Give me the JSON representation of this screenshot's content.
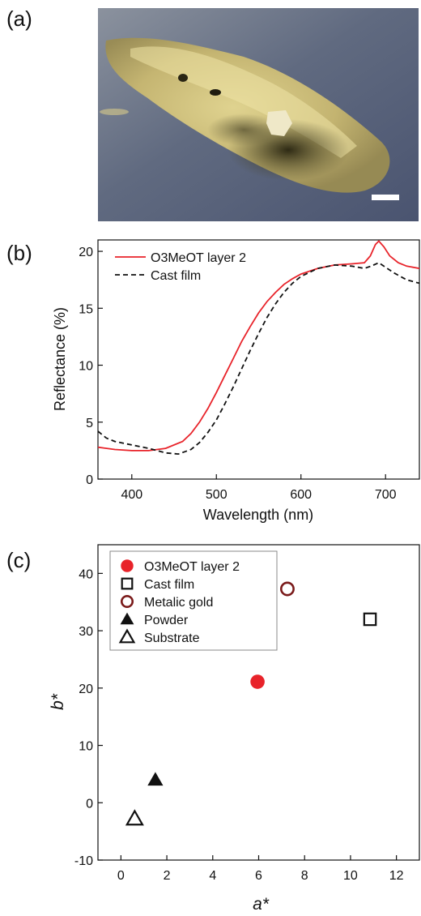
{
  "panels": {
    "a": "(a)",
    "b": "(b)",
    "c": "(c)"
  },
  "photo": {
    "description_icon": "photo-of-gold-colored-film-on-paper"
  },
  "chart_data": [
    {
      "type": "line",
      "xlabel": "Wavelength (nm)",
      "ylabel": "Reflectance (%)",
      "xlim": [
        360,
        740
      ],
      "ylim": [
        0,
        21
      ],
      "xticks": [
        400,
        500,
        600,
        700
      ],
      "yticks": [
        0,
        5,
        10,
        15,
        20
      ],
      "legend_position": "top-left",
      "series": [
        {
          "name": "O3MeOT layer 2",
          "color": "#e8232a",
          "dash": "solid",
          "points": [
            [
              360,
              2.8
            ],
            [
              380,
              2.6
            ],
            [
              400,
              2.5
            ],
            [
              420,
              2.5
            ],
            [
              440,
              2.7
            ],
            [
              460,
              3.3
            ],
            [
              470,
              4.0
            ],
            [
              480,
              5.0
            ],
            [
              490,
              6.2
            ],
            [
              500,
              7.6
            ],
            [
              510,
              9.1
            ],
            [
              520,
              10.6
            ],
            [
              530,
              12.1
            ],
            [
              540,
              13.4
            ],
            [
              550,
              14.6
            ],
            [
              560,
              15.6
            ],
            [
              570,
              16.4
            ],
            [
              580,
              17.1
            ],
            [
              590,
              17.6
            ],
            [
              600,
              18.0
            ],
            [
              620,
              18.5
            ],
            [
              640,
              18.8
            ],
            [
              660,
              18.9
            ],
            [
              675,
              19.0
            ],
            [
              682,
              19.6
            ],
            [
              688,
              20.6
            ],
            [
              692,
              20.9
            ],
            [
              698,
              20.4
            ],
            [
              705,
              19.6
            ],
            [
              715,
              19.0
            ],
            [
              725,
              18.7
            ],
            [
              740,
              18.5
            ]
          ]
        },
        {
          "name": "Cast film",
          "color": "#111111",
          "dash": "dashed",
          "points": [
            [
              360,
              4.2
            ],
            [
              370,
              3.6
            ],
            [
              380,
              3.3
            ],
            [
              400,
              3.0
            ],
            [
              420,
              2.7
            ],
            [
              440,
              2.3
            ],
            [
              455,
              2.2
            ],
            [
              470,
              2.6
            ],
            [
              480,
              3.2
            ],
            [
              490,
              4.1
            ],
            [
              500,
              5.2
            ],
            [
              510,
              6.6
            ],
            [
              520,
              8.1
            ],
            [
              530,
              9.7
            ],
            [
              540,
              11.3
            ],
            [
              550,
              12.8
            ],
            [
              560,
              14.2
            ],
            [
              570,
              15.4
            ],
            [
              580,
              16.4
            ],
            [
              590,
              17.2
            ],
            [
              600,
              17.8
            ],
            [
              620,
              18.5
            ],
            [
              640,
              18.8
            ],
            [
              660,
              18.7
            ],
            [
              675,
              18.5
            ],
            [
              683,
              18.7
            ],
            [
              692,
              19.0
            ],
            [
              700,
              18.6
            ],
            [
              710,
              18.1
            ],
            [
              725,
              17.5
            ],
            [
              740,
              17.2
            ]
          ]
        }
      ]
    },
    {
      "type": "scatter",
      "xlabel": "a*",
      "ylabel": "b*",
      "xlim": [
        -1,
        13
      ],
      "ylim": [
        -10,
        45
      ],
      "xticks": [
        0,
        2,
        4,
        6,
        8,
        10,
        12
      ],
      "yticks": [
        -10,
        0,
        10,
        20,
        30,
        40
      ],
      "legend_position": "top-left",
      "series": [
        {
          "name": "O3MeOT layer 2",
          "marker": "circle-filled",
          "color": "#e8232a",
          "x": [
            5.95
          ],
          "y": [
            21.1
          ]
        },
        {
          "name": "Cast film",
          "marker": "square-open",
          "color": "#111111",
          "x": [
            10.85
          ],
          "y": [
            32.0
          ]
        },
        {
          "name": "Metalic gold",
          "marker": "circle-open",
          "color": "#7a1a1a",
          "x": [
            7.25
          ],
          "y": [
            37.3
          ]
        },
        {
          "name": "Powder",
          "marker": "triangle-filled",
          "color": "#111111",
          "x": [
            1.5
          ],
          "y": [
            4.0
          ]
        },
        {
          "name": "Substrate",
          "marker": "triangle-open",
          "color": "#111111",
          "x": [
            0.6
          ],
          "y": [
            -2.8
          ]
        }
      ]
    }
  ]
}
